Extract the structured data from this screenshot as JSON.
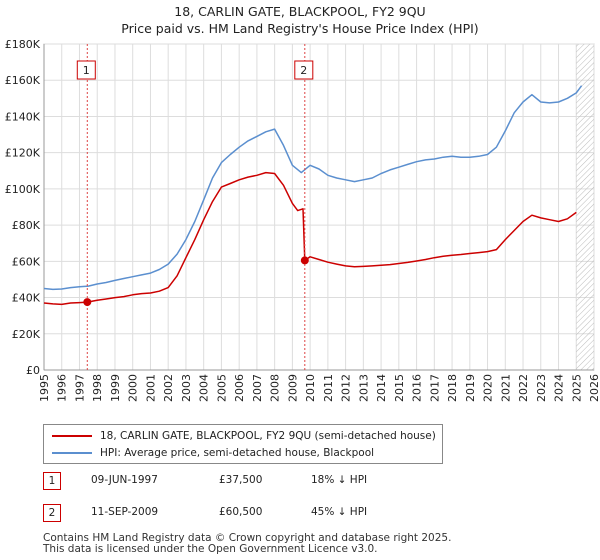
{
  "title_line1": "18, CARLIN GATE, BLACKPOOL, FY2 9QU",
  "title_line2": "Price paid vs. HM Land Registry's House Price Index (HPI)",
  "chart_data": {
    "type": "line",
    "xlim": [
      1995,
      2026
    ],
    "ylim": [
      0,
      180000
    ],
    "x_ticks": [
      1995,
      1996,
      1997,
      1998,
      1999,
      2000,
      2001,
      2002,
      2003,
      2004,
      2005,
      2006,
      2007,
      2008,
      2009,
      2010,
      2011,
      2012,
      2013,
      2014,
      2015,
      2016,
      2017,
      2018,
      2019,
      2020,
      2021,
      2022,
      2023,
      2024,
      2025,
      2026
    ],
    "y_ticks": [
      {
        "value": 0,
        "label": "£0"
      },
      {
        "value": 20000,
        "label": "£20K"
      },
      {
        "value": 40000,
        "label": "£40K"
      },
      {
        "value": 60000,
        "label": "£60K"
      },
      {
        "value": 80000,
        "label": "£80K"
      },
      {
        "value": 100000,
        "label": "£100K"
      },
      {
        "value": 120000,
        "label": "£120K"
      },
      {
        "value": 140000,
        "label": "£140K"
      },
      {
        "value": 160000,
        "label": "£160K"
      },
      {
        "value": 180000,
        "label": "£180K"
      }
    ],
    "grid": true,
    "future_hatch_from": 2025.0,
    "series": [
      {
        "name": "18, CARLIN GATE, BLACKPOOL, FY2 9QU (semi-detached house)",
        "color": "#cc0000",
        "x": [
          1995.0,
          1995.5,
          1996.0,
          1996.5,
          1997.0,
          1997.44,
          1998.0,
          1998.5,
          1999.0,
          1999.5,
          2000.0,
          2000.5,
          2001.0,
          2001.5,
          2002.0,
          2002.5,
          2003.0,
          2003.5,
          2004.0,
          2004.5,
          2005.0,
          2005.5,
          2006.0,
          2006.5,
          2007.0,
          2007.5,
          2008.0,
          2008.5,
          2009.0,
          2009.3,
          2009.6,
          2009.7,
          2010.0,
          2010.5,
          2011.0,
          2011.5,
          2012.0,
          2012.5,
          2013.0,
          2013.5,
          2014.0,
          2014.5,
          2015.0,
          2015.5,
          2016.0,
          2016.5,
          2017.0,
          2017.5,
          2018.0,
          2018.5,
          2019.0,
          2019.5,
          2020.0,
          2020.5,
          2021.0,
          2021.5,
          2022.0,
          2022.5,
          2023.0,
          2023.5,
          2024.0,
          2024.5,
          2025.0
        ],
        "y": [
          37000,
          36500,
          36200,
          37000,
          37200,
          37500,
          38500,
          39200,
          40000,
          40500,
          41500,
          42200,
          42500,
          43500,
          45500,
          52000,
          62000,
          72000,
          83000,
          93000,
          101000,
          103000,
          105000,
          106500,
          107500,
          109000,
          108500,
          102000,
          92000,
          88000,
          89000,
          60500,
          62500,
          61000,
          59500,
          58500,
          57500,
          57000,
          57200,
          57500,
          57800,
          58200,
          58800,
          59400,
          60200,
          61000,
          62000,
          62800,
          63400,
          63800,
          64300,
          64800,
          65400,
          66500,
          72000,
          77000,
          82000,
          85500,
          84000,
          83000,
          82000,
          83500,
          87000
        ]
      },
      {
        "name": "HPI: Average price, semi-detached house, Blackpool",
        "color": "#5b8fcf",
        "x": [
          1995.0,
          1995.5,
          1996.0,
          1996.5,
          1997.0,
          1997.5,
          1998.0,
          1998.5,
          1999.0,
          1999.5,
          2000.0,
          2000.5,
          2001.0,
          2001.5,
          2002.0,
          2002.5,
          2003.0,
          2003.5,
          2004.0,
          2004.5,
          2005.0,
          2005.5,
          2006.0,
          2006.5,
          2007.0,
          2007.5,
          2008.0,
          2008.5,
          2009.0,
          2009.5,
          2010.0,
          2010.5,
          2011.0,
          2011.5,
          2012.0,
          2012.5,
          2013.0,
          2013.5,
          2014.0,
          2014.5,
          2015.0,
          2015.5,
          2016.0,
          2016.5,
          2017.0,
          2017.5,
          2018.0,
          2018.5,
          2019.0,
          2019.5,
          2020.0,
          2020.5,
          2021.0,
          2021.5,
          2022.0,
          2022.5,
          2023.0,
          2023.5,
          2024.0,
          2024.5,
          2025.0,
          2025.3
        ],
        "y": [
          45000,
          44500,
          44700,
          45500,
          46000,
          46300,
          47500,
          48300,
          49500,
          50500,
          51500,
          52500,
          53500,
          55500,
          58500,
          64000,
          72000,
          82000,
          94000,
          106000,
          114500,
          119000,
          123000,
          126500,
          129000,
          131500,
          133000,
          124000,
          113000,
          109000,
          113000,
          111000,
          107500,
          106000,
          105000,
          104000,
          105000,
          106000,
          108500,
          110500,
          112000,
          113500,
          115000,
          116000,
          116500,
          117500,
          118000,
          117500,
          117500,
          118000,
          119000,
          123000,
          132000,
          142000,
          148000,
          152000,
          148000,
          147500,
          148000,
          150000,
          153000,
          157000
        ]
      }
    ],
    "sales": [
      {
        "label": "1",
        "x": 1997.44,
        "y": 37500
      },
      {
        "label": "2",
        "x": 2009.7,
        "y": 60500
      }
    ]
  },
  "legend": {
    "red_label": "18, CARLIN GATE, BLACKPOOL, FY2 9QU (semi-detached house)",
    "blue_label": "HPI: Average price, semi-detached house, Blackpool"
  },
  "transactions": [
    {
      "num": "1",
      "date": "09-JUN-1997",
      "price": "£37,500",
      "hpi": "18% ↓ HPI"
    },
    {
      "num": "2",
      "date": "11-SEP-2009",
      "price": "£60,500",
      "hpi": "45% ↓ HPI"
    }
  ],
  "footer": {
    "line1": "Contains HM Land Registry data © Crown copyright and database right 2025.",
    "line2": "This data is licensed under the Open Government Licence v3.0."
  }
}
